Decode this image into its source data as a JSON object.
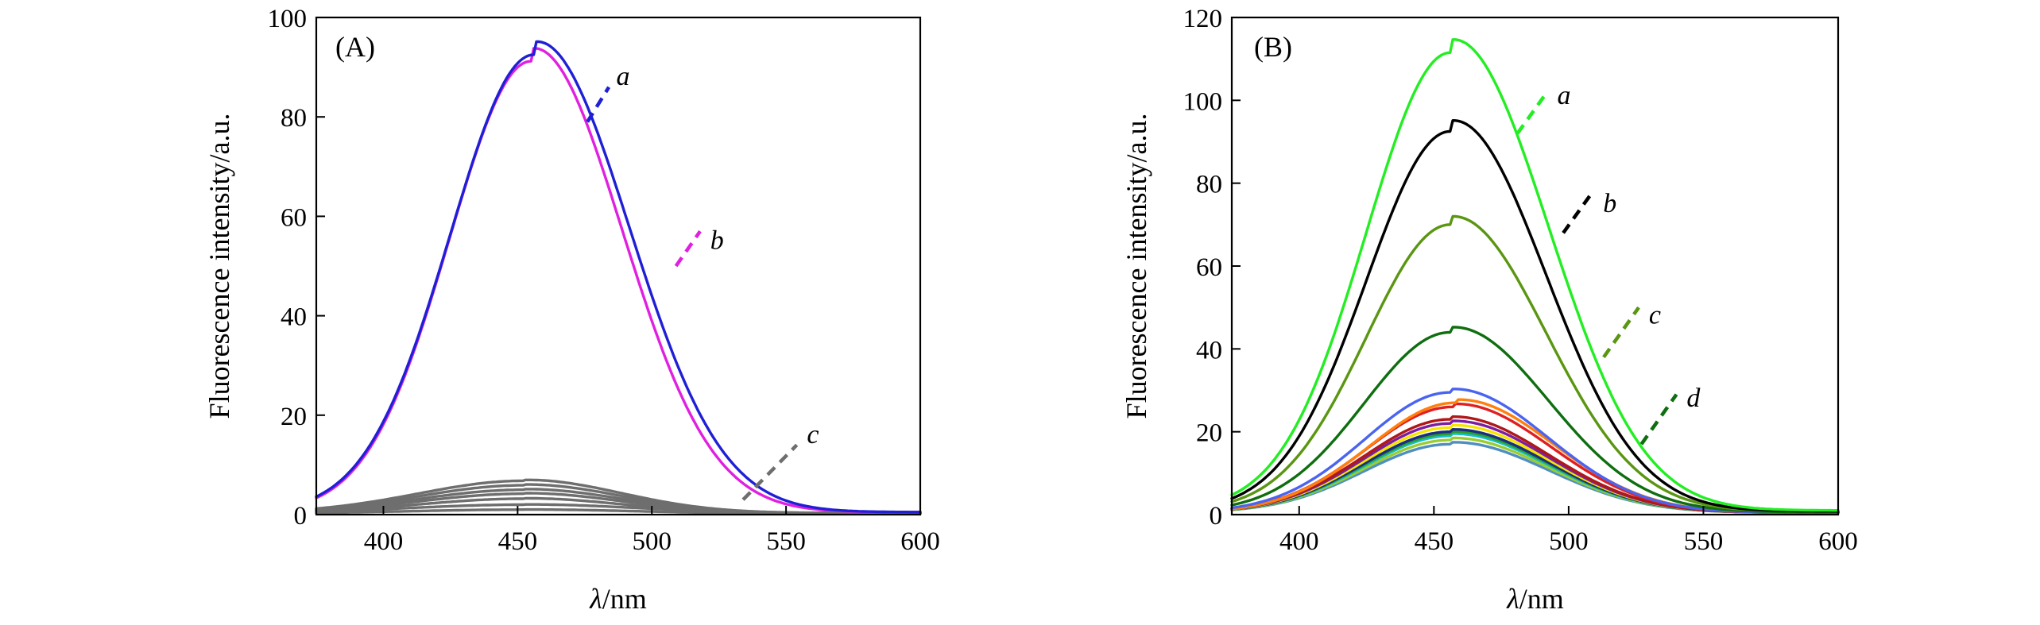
{
  "chart_data": [
    {
      "panel": "(A)",
      "type": "line",
      "xlabel_symbol": "λ",
      "xlabel_unit": "/nm",
      "ylabel": "Fluorescence intensity/a.u.",
      "xlim": [
        375,
        600
      ],
      "ylim": [
        0,
        100
      ],
      "x_ticks": [
        "400",
        "450",
        "500",
        "550",
        "600"
      ],
      "y_ticks": [
        "0",
        "20",
        "40",
        "60",
        "80",
        "100"
      ],
      "grid": false,
      "series": [
        {
          "name": "a",
          "color": "#1f1fd6",
          "peak_x": 456,
          "peak_y": 92.5,
          "wl": 44,
          "wr": 47,
          "base": 0.5,
          "x_label": 485,
          "y_label": 88,
          "lead_x1": 476,
          "lead_y1": 79,
          "lead_x2": 484,
          "lead_y2": 86
        },
        {
          "name": "b",
          "color": "#e020e0",
          "peak_x": 455,
          "peak_y": 91.2,
          "wl": 43,
          "wr": 45,
          "base": 0.5,
          "x_label": 520,
          "y_label": 55,
          "lead_x1": 509,
          "lead_y1": 50,
          "lead_x2": 518,
          "lead_y2": 57
        },
        {
          "name": "c",
          "color": "#6e6e6e",
          "peak_x": 452,
          "peak_y": 6.8,
          "wl": 55,
          "wr": 48,
          "base": 0.3,
          "x_label": 556,
          "y_label": 16,
          "lead_x1": 534,
          "lead_y1": 3,
          "lead_x2": 554,
          "lead_y2": 14
        },
        {
          "name": "",
          "color": "#6e6e6e",
          "peak_x": 452,
          "peak_y": 5.9,
          "wl": 55,
          "wr": 48,
          "base": 0.3
        },
        {
          "name": "",
          "color": "#6e6e6e",
          "peak_x": 452,
          "peak_y": 5.0,
          "wl": 55,
          "wr": 48,
          "base": 0.3
        },
        {
          "name": "",
          "color": "#6e6e6e",
          "peak_x": 452,
          "peak_y": 4.2,
          "wl": 55,
          "wr": 48,
          "base": 0.3
        },
        {
          "name": "",
          "color": "#6e6e6e",
          "peak_x": 452,
          "peak_y": 3.2,
          "wl": 55,
          "wr": 48,
          "base": 0.3
        },
        {
          "name": "",
          "color": "#6e6e6e",
          "peak_x": 452,
          "peak_y": 2.0,
          "wl": 60,
          "wr": 55,
          "base": 0.3
        },
        {
          "name": "",
          "color": "#6e6e6e",
          "peak_x": 452,
          "peak_y": 1.0,
          "wl": 60,
          "wr": 55,
          "base": 0.2
        }
      ]
    },
    {
      "panel": "(B)",
      "type": "line",
      "xlabel_symbol": "λ",
      "xlabel_unit": "/nm",
      "ylabel": "Fluorescence intensity/a.u.",
      "xlim": [
        375,
        600
      ],
      "ylim": [
        0,
        120
      ],
      "x_ticks": [
        "400",
        "450",
        "500",
        "550",
        "600"
      ],
      "y_ticks": [
        "0",
        "20",
        "40",
        "60",
        "80",
        "100",
        "120"
      ],
      "grid": false,
      "series": [
        {
          "name": "a",
          "color": "#22ee22",
          "peak_x": 456,
          "peak_y": 111.5,
          "wl": 44,
          "wr": 48,
          "base": 1.0,
          "x_label": 494,
          "y_label": 101,
          "lead_x1": 481,
          "lead_y1": 92,
          "lead_x2": 492,
          "lead_y2": 102
        },
        {
          "name": "b",
          "color": "#000000",
          "peak_x": 456,
          "peak_y": 92.5,
          "wl": 44,
          "wr": 47,
          "base": 0.8,
          "x_label": 511,
          "y_label": 75,
          "lead_x1": 498,
          "lead_y1": 68,
          "lead_x2": 509,
          "lead_y2": 78
        },
        {
          "name": "c",
          "color": "#5a9612",
          "peak_x": 456,
          "peak_y": 70,
          "wl": 44,
          "wr": 47,
          "base": 0.8,
          "x_label": 528,
          "y_label": 48,
          "lead_x1": 513,
          "lead_y1": 38,
          "lead_x2": 526,
          "lead_y2": 50
        },
        {
          "name": "d",
          "color": "#0f6e0f",
          "peak_x": 456,
          "peak_y": 44,
          "wl": 45,
          "wr": 48,
          "base": 0.6,
          "x_label": 542,
          "y_label": 28,
          "lead_x1": 527,
          "lead_y1": 17,
          "lead_x2": 540,
          "lead_y2": 29
        },
        {
          "name": "",
          "color": "#4a64f0",
          "peak_x": 456,
          "peak_y": 29.5,
          "wl": 45,
          "wr": 48,
          "base": 0.5
        },
        {
          "name": "",
          "color": "#ff7f0e",
          "peak_x": 458,
          "peak_y": 27,
          "wl": 45,
          "wr": 48,
          "base": 0.5
        },
        {
          "name": "",
          "color": "#e02020",
          "peak_x": 457,
          "peak_y": 26,
          "wl": 45,
          "wr": 48,
          "base": 0.5
        },
        {
          "name": "",
          "color": "#b01818",
          "peak_x": 456,
          "peak_y": 23,
          "wl": 45,
          "wr": 48,
          "base": 0.5
        },
        {
          "name": "",
          "color": "#7a1fa2",
          "peak_x": 456,
          "peak_y": 22,
          "wl": 45,
          "wr": 48,
          "base": 0.5
        },
        {
          "name": "",
          "color": "#f5e600",
          "peak_x": 456,
          "peak_y": 21,
          "wl": 45,
          "wr": 48,
          "base": 0.5
        },
        {
          "name": "",
          "color": "#1a2f80",
          "peak_x": 456,
          "peak_y": 20,
          "wl": 45,
          "wr": 48,
          "base": 0.5
        },
        {
          "name": "",
          "color": "#2ca02c",
          "peak_x": 456,
          "peak_y": 19.5,
          "wl": 45,
          "wr": 48,
          "base": 0.5
        },
        {
          "name": "",
          "color": "#17becf",
          "peak_x": 456,
          "peak_y": 19,
          "wl": 45,
          "wr": 48,
          "base": 0.5
        },
        {
          "name": "",
          "color": "#9acd32",
          "peak_x": 456,
          "peak_y": 18,
          "wl": 45,
          "wr": 48,
          "base": 0.5
        },
        {
          "name": "",
          "color": "#4f8fc0",
          "peak_x": 456,
          "peak_y": 17,
          "wl": 45,
          "wr": 48,
          "base": 0.5
        }
      ]
    }
  ]
}
